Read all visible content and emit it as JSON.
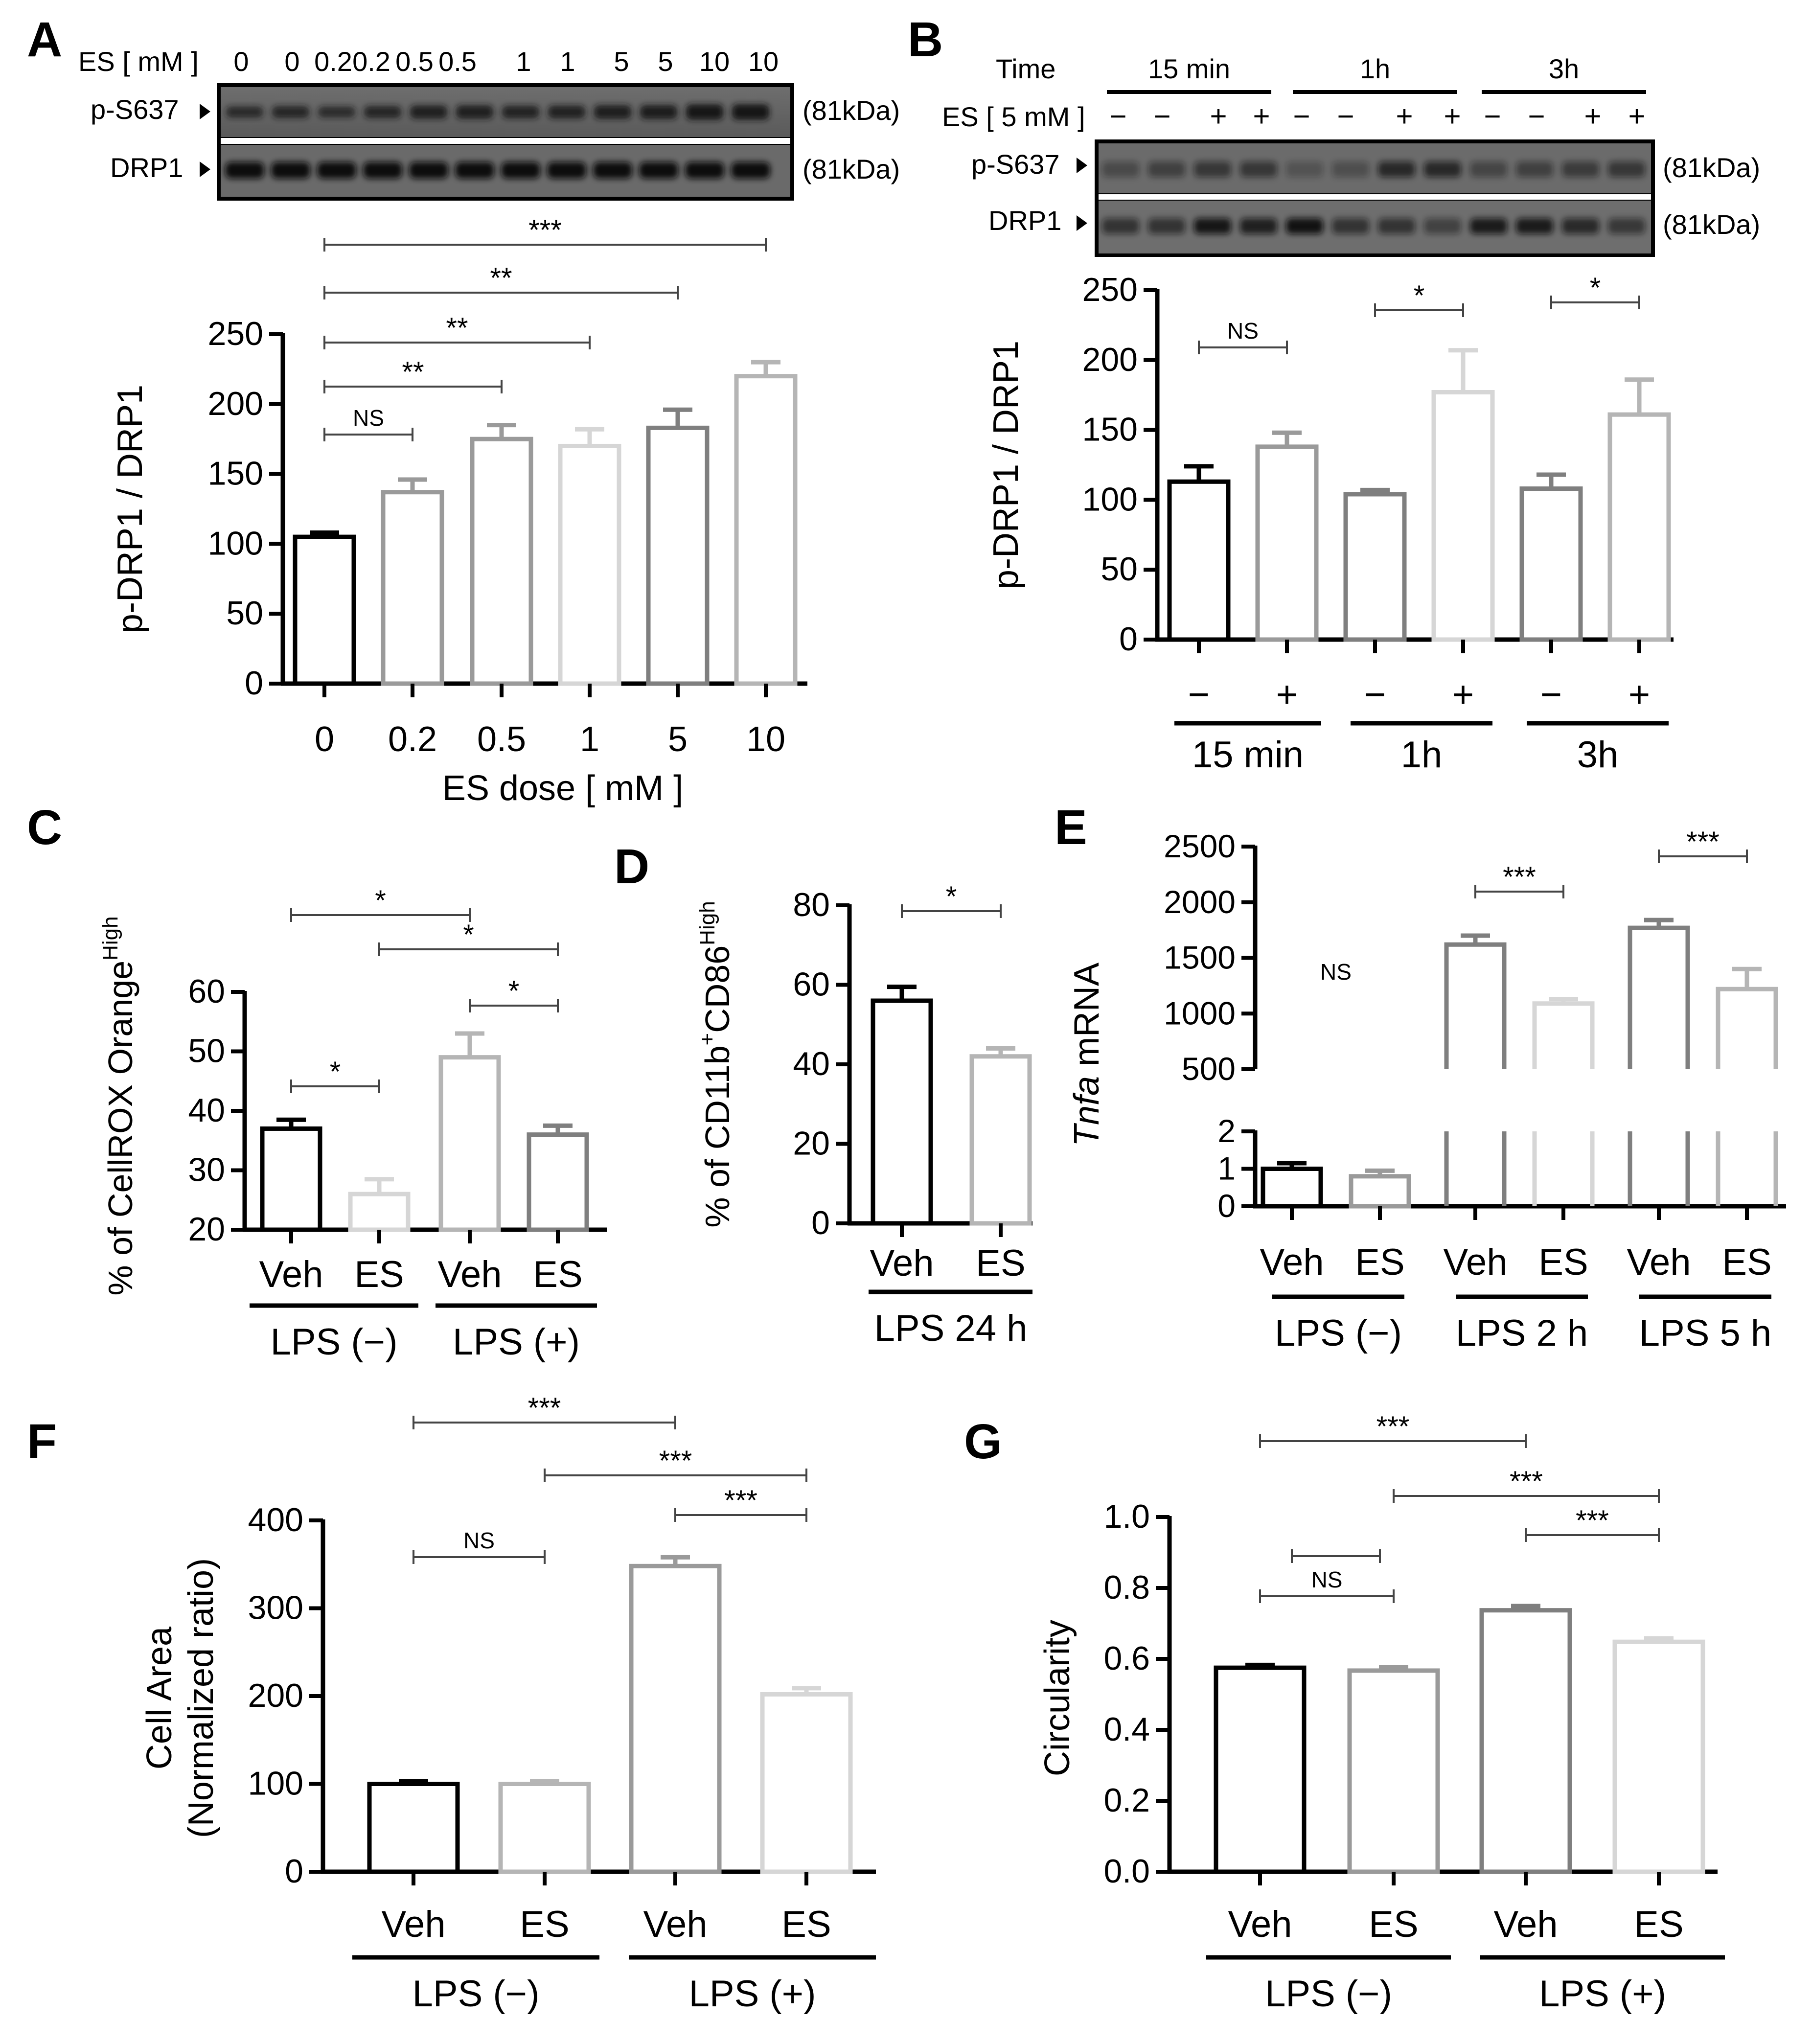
{
  "panels": {
    "A": {
      "letter": "A"
    },
    "B": {
      "letter": "B"
    },
    "C": {
      "letter": "C"
    },
    "D": {
      "letter": "D"
    },
    "E": {
      "letter": "E"
    },
    "F": {
      "letter": "F"
    },
    "G": {
      "letter": "G"
    }
  },
  "blotA": {
    "header": "ES [ mM ]",
    "lanes": [
      "0",
      "0",
      "0.2",
      "0.2",
      "0.5",
      "0.5",
      "1",
      "1",
      "5",
      "5",
      "10",
      "10"
    ],
    "rows": [
      "p-S637",
      "DRP1"
    ],
    "kda": [
      "(81kDa)",
      "(81kDa)"
    ]
  },
  "blotB": {
    "time_label": "Time",
    "es_label": "ES [ 5 mM ]",
    "groups": [
      "15 min",
      "1h",
      "3h"
    ],
    "lanes": [
      "−",
      "−",
      "+",
      "+",
      "−",
      "−",
      "+",
      "+",
      "−",
      "−",
      "+",
      "+"
    ],
    "rows": [
      "p-S637",
      "DRP1"
    ],
    "kda": [
      "(81kDa)",
      "(81kDa)"
    ]
  },
  "colors": {
    "black": "#000000",
    "gray1": "#9a9a9a",
    "gray2": "#b5b5b5",
    "gray3": "#d6d6d6",
    "gray4": "#7f7f7f"
  },
  "chart_data": [
    {
      "panel": "A",
      "type": "bar",
      "categories": [
        "0",
        "0.2",
        "0.5",
        "1",
        "5",
        "10"
      ],
      "values": [
        105,
        137,
        175,
        170,
        183,
        220
      ],
      "errors": [
        3,
        9,
        10,
        12,
        13,
        10
      ],
      "ylabel": "p-DRP1 / DRP1",
      "xlabel": "ES dose [ mM ]",
      "ylim": [
        0,
        250
      ],
      "yticks": [
        0,
        50,
        100,
        150,
        200,
        250
      ],
      "significance": [
        {
          "from": 0,
          "to": 1,
          "label": "NS"
        },
        {
          "from": 0,
          "to": 2,
          "label": "**"
        },
        {
          "from": 0,
          "to": 3,
          "label": "**"
        },
        {
          "from": 0,
          "to": 4,
          "label": "**"
        },
        {
          "from": 0,
          "to": 5,
          "label": "***"
        }
      ]
    },
    {
      "panel": "B",
      "type": "bar",
      "categories": [
        "−",
        "+",
        "−",
        "+",
        "−",
        "+"
      ],
      "groups": [
        "15 min",
        "1h",
        "3h"
      ],
      "values": [
        113,
        138,
        104,
        177,
        108,
        161
      ],
      "errors": [
        11,
        10,
        3,
        30,
        10,
        25
      ],
      "ylabel": "p-DRP1 / DRP1",
      "ylim": [
        0,
        250
      ],
      "yticks": [
        0,
        50,
        100,
        150,
        200,
        250
      ],
      "significance": [
        {
          "from": 0,
          "to": 1,
          "label": "NS"
        },
        {
          "from": 2,
          "to": 3,
          "label": "*"
        },
        {
          "from": 4,
          "to": 5,
          "label": "*"
        }
      ]
    },
    {
      "panel": "C",
      "type": "bar",
      "categories": [
        "Veh",
        "ES",
        "Veh",
        "ES"
      ],
      "groups": [
        "LPS (−)",
        "LPS (+)"
      ],
      "values": [
        37,
        26,
        49,
        36
      ],
      "errors": [
        1.5,
        2.5,
        4,
        1.5
      ],
      "ylabel_main": "% of CellROX Orange",
      "ylabel_sup": "High",
      "ylim": [
        20,
        60
      ],
      "yticks": [
        20,
        30,
        40,
        50,
        60
      ],
      "significance": [
        {
          "from": 0,
          "to": 1,
          "label": "*"
        },
        {
          "from": 2,
          "to": 3,
          "label": "*"
        },
        {
          "from": 1,
          "to": 3,
          "label": "*"
        },
        {
          "from": 0,
          "to": 2,
          "label": "*"
        }
      ]
    },
    {
      "panel": "D",
      "type": "bar",
      "categories": [
        "Veh",
        "ES"
      ],
      "groups": [
        "LPS 24 h"
      ],
      "values": [
        56,
        42
      ],
      "errors": [
        3.5,
        2
      ],
      "ylabel_parts": [
        "% of CD11b",
        "+",
        "CD86",
        "High"
      ],
      "ylim": [
        0,
        80
      ],
      "yticks": [
        0,
        20,
        40,
        60,
        80
      ],
      "significance": [
        {
          "from": 0,
          "to": 1,
          "label": "*"
        }
      ]
    },
    {
      "panel": "E",
      "type": "bar",
      "categories": [
        "Veh",
        "ES",
        "Veh",
        "ES",
        "Veh",
        "ES"
      ],
      "groups": [
        "LPS (−)",
        "LPS 2 h",
        "LPS 5 h"
      ],
      "values": [
        1.0,
        0.8,
        1620,
        1090,
        1770,
        1220
      ],
      "errors": [
        0.15,
        0.15,
        80,
        40,
        70,
        180
      ],
      "ylabel_italic": "Tnfa",
      "ylabel_rest": " mRNA",
      "lower_ylim": [
        0,
        2
      ],
      "lower_yticks": [
        0,
        1,
        2
      ],
      "upper_ylim": [
        500,
        2500
      ],
      "upper_yticks": [
        500,
        1000,
        1500,
        2000,
        2500
      ],
      "significance": [
        {
          "from": 0,
          "to": 1,
          "label": "NS"
        },
        {
          "from": 2,
          "to": 3,
          "label": "***"
        },
        {
          "from": 4,
          "to": 5,
          "label": "***"
        }
      ]
    },
    {
      "panel": "F",
      "type": "bar",
      "categories": [
        "Veh",
        "ES",
        "Veh",
        "ES"
      ],
      "groups": [
        "LPS (−)",
        "LPS (+)"
      ],
      "values": [
        100,
        100,
        348,
        202
      ],
      "errors": [
        3,
        3,
        10,
        7
      ],
      "ylabel_lines": [
        "Cell Area",
        "(Normalized ratio)"
      ],
      "ylim": [
        0,
        400
      ],
      "yticks": [
        0,
        100,
        200,
        300,
        400
      ],
      "significance": [
        {
          "from": 0,
          "to": 1,
          "label": "NS"
        },
        {
          "from": 2,
          "to": 3,
          "label": "***"
        },
        {
          "from": 1,
          "to": 3,
          "label": "***"
        },
        {
          "from": 0,
          "to": 2,
          "label": "***"
        }
      ]
    },
    {
      "panel": "G",
      "type": "bar",
      "categories": [
        "Veh",
        "ES",
        "Veh",
        "ES"
      ],
      "groups": [
        "LPS (−)",
        "LPS (+)"
      ],
      "values": [
        0.575,
        0.567,
        0.737,
        0.648
      ],
      "errors": [
        0.008,
        0.01,
        0.012,
        0.01
      ],
      "ylabel": "Circularity",
      "ylim": [
        0,
        1.0
      ],
      "yticks": [
        "0.0",
        "0.2",
        "0.4",
        "0.6",
        "0.8",
        "1.0"
      ],
      "significance": [
        {
          "from": 0,
          "to": 1,
          "label": "NS"
        },
        {
          "from": 2,
          "to": 3,
          "label": "***"
        },
        {
          "from": 1,
          "to": 3,
          "label": "***"
        },
        {
          "from": 0,
          "to": 2,
          "label": "***"
        }
      ]
    }
  ]
}
